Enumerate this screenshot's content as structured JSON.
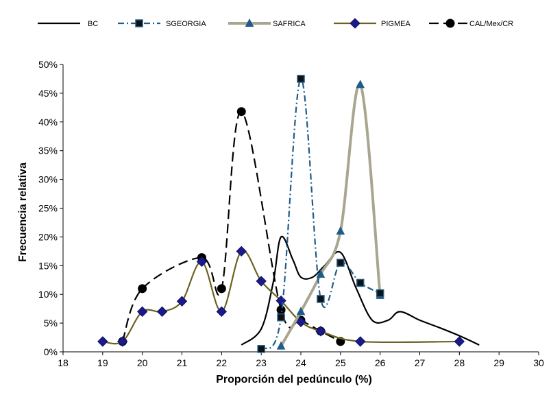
{
  "chart_data": {
    "type": "line",
    "title": "",
    "xlabel": "Proporción del pedúnculo (%)",
    "ylabel": "Frecuencia relativa",
    "xlim": [
      18,
      30
    ],
    "ylim": [
      0,
      50
    ],
    "x_ticks": [
      "18",
      "19",
      "20",
      "21",
      "22",
      "23",
      "24",
      "25",
      "26",
      "27",
      "28",
      "29",
      "30"
    ],
    "y_ticks": [
      "0%",
      "5%",
      "10%",
      "15%",
      "20%",
      "25%",
      "30%",
      "35%",
      "40%",
      "45%",
      "50%"
    ],
    "legend_position": "top",
    "grid": false,
    "series": [
      {
        "name": "BC",
        "color": "#000000",
        "line": "solid",
        "marker": "none",
        "points": [
          [
            22.5,
            1.2
          ],
          [
            23,
            4
          ],
          [
            23.3,
            12
          ],
          [
            23.5,
            20
          ],
          [
            23.8,
            16
          ],
          [
            24,
            13
          ],
          [
            24.3,
            13
          ],
          [
            24.6,
            15
          ],
          [
            25,
            17.3
          ],
          [
            25.4,
            11
          ],
          [
            25.8,
            5.5
          ],
          [
            26.2,
            5.5
          ],
          [
            26.5,
            7
          ],
          [
            27,
            5.5
          ],
          [
            27.5,
            4.2
          ],
          [
            28,
            2.8
          ],
          [
            28.5,
            1.2
          ]
        ]
      },
      {
        "name": "SGEORGIA",
        "color": "#1f5c8a",
        "line": "dashdot",
        "marker": "square",
        "points": [
          [
            23,
            0.5
          ],
          [
            23.5,
            6
          ],
          [
            24,
            47.5
          ],
          [
            24.5,
            9.2
          ],
          [
            25,
            15.5
          ],
          [
            25.5,
            12
          ],
          [
            26,
            10.2
          ]
        ]
      },
      {
        "name": "SAFRICA",
        "color": "#a9a690",
        "line": "solid",
        "marker": "triangle",
        "points": [
          [
            23.5,
            1
          ],
          [
            24,
            7
          ],
          [
            24.5,
            13.5
          ],
          [
            25,
            21
          ],
          [
            25.5,
            46.5
          ],
          [
            26,
            9.8
          ]
        ]
      },
      {
        "name": "PIGMEA",
        "color": "#6b6121",
        "line": "solid",
        "marker": "diamond",
        "points": [
          [
            19,
            1.8
          ],
          [
            19.5,
            1.8
          ],
          [
            20,
            7
          ],
          [
            20.5,
            7
          ],
          [
            21,
            8.8
          ],
          [
            21.5,
            15.7
          ],
          [
            22,
            7
          ],
          [
            22.5,
            17.5
          ],
          [
            23,
            12.3
          ],
          [
            23.5,
            8.9
          ],
          [
            24,
            5.2
          ],
          [
            24.5,
            3.6
          ],
          [
            25.5,
            1.8
          ],
          [
            28,
            1.8
          ]
        ]
      },
      {
        "name": "CAL/Mex/CR",
        "color": "#000000",
        "line": "dashed",
        "marker": "circle",
        "points": [
          [
            19.5,
            1.8
          ],
          [
            20,
            11
          ],
          [
            21.5,
            16.4
          ],
          [
            22,
            11
          ],
          [
            22.5,
            41.8
          ],
          [
            23.5,
            7.3
          ],
          [
            24,
            5.5
          ],
          [
            24.5,
            3.6
          ],
          [
            25,
            1.8
          ]
        ]
      }
    ]
  }
}
